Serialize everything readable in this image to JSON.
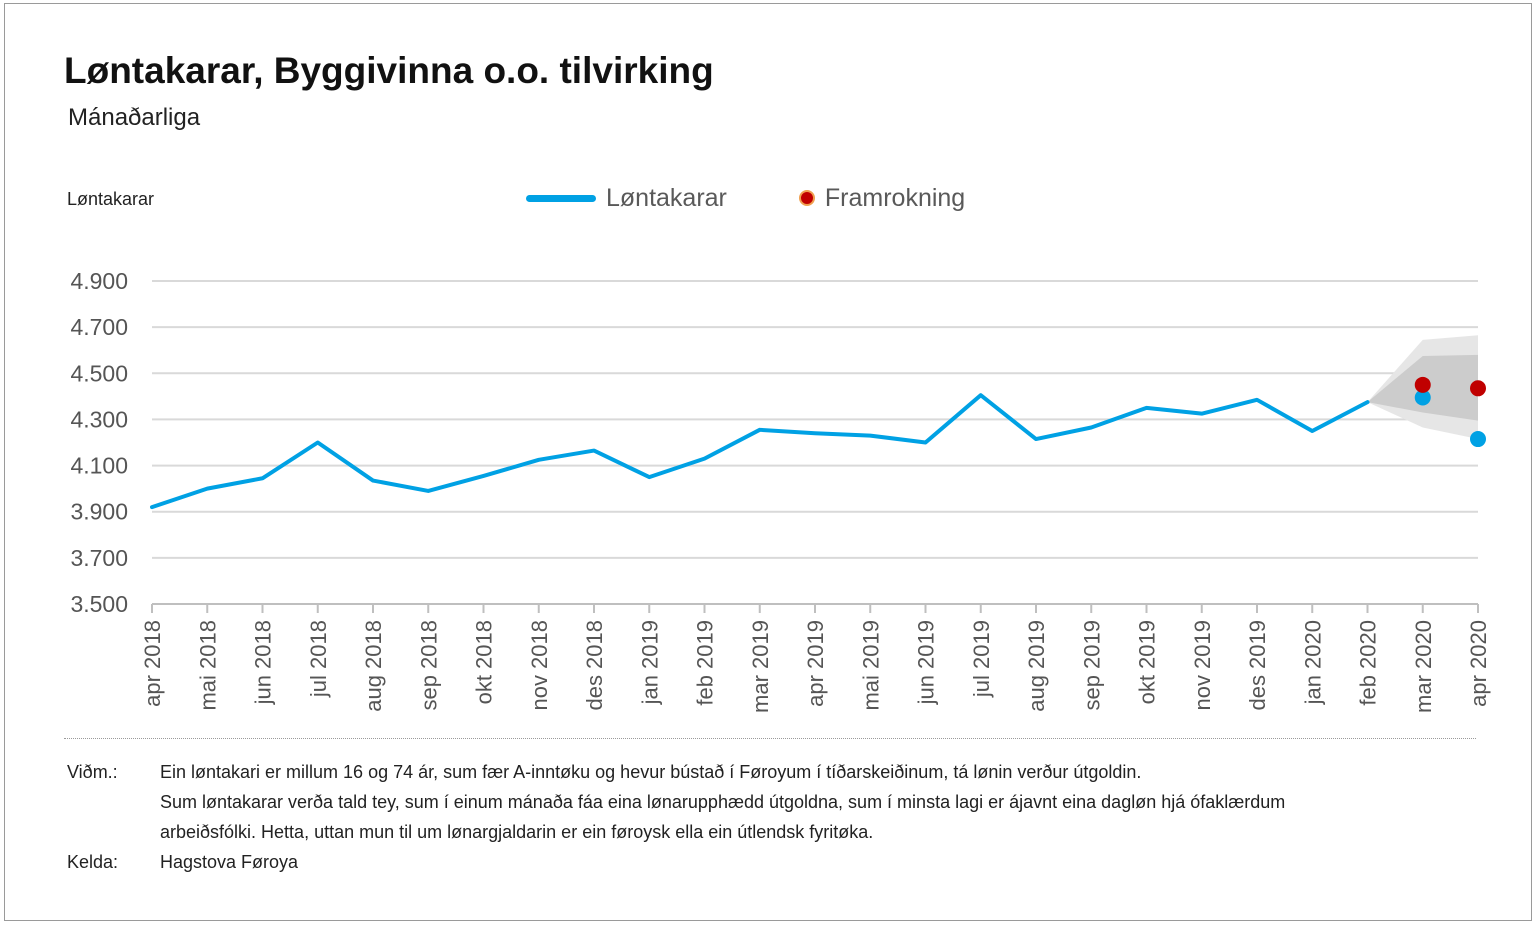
{
  "header": {
    "title": "Løntakarar, Byggivinna o.o. tilvirking",
    "subtitle": "Mánaðarliga"
  },
  "chart_data": {
    "type": "line",
    "title": "Løntakarar, Byggivinna o.o. tilvirking",
    "subtitle": "Mánaðarliga",
    "ylabel": "Løntakarar",
    "ylim": [
      3500,
      4900
    ],
    "yticks": [
      3500,
      3700,
      3900,
      4100,
      4300,
      4500,
      4700,
      4900
    ],
    "ytick_labels": [
      "3.500",
      "3.700",
      "3.900",
      "4.100",
      "4.300",
      "4.500",
      "4.700",
      "4.900"
    ],
    "categories": [
      "apr 2018",
      "mai 2018",
      "jun 2018",
      "jul 2018",
      "aug 2018",
      "sep 2018",
      "okt 2018",
      "nov 2018",
      "des 2018",
      "jan 2019",
      "feb 2019",
      "mar 2019",
      "apr 2019",
      "mai 2019",
      "jun 2019",
      "jul 2019",
      "aug 2019",
      "sep 2019",
      "okt 2019",
      "nov 2019",
      "des 2019",
      "jan 2020",
      "feb 2020",
      "mar 2020",
      "apr 2020"
    ],
    "grid": true,
    "legend_position": "top-center",
    "series": [
      {
        "name": "Løntakarar",
        "color": "#00a1e4",
        "values": [
          3920,
          4000,
          4045,
          4200,
          4035,
          3990,
          4055,
          4125,
          4165,
          4050,
          4130,
          4255,
          4240,
          4230,
          4200,
          4405,
          4215,
          4265,
          4350,
          4325,
          4385,
          4250,
          4375,
          null,
          null
        ]
      },
      {
        "name": "Framrokning",
        "color": "#c00000",
        "values": [
          null,
          null,
          null,
          null,
          null,
          null,
          null,
          null,
          null,
          null,
          null,
          null,
          null,
          null,
          null,
          null,
          null,
          null,
          null,
          null,
          null,
          null,
          null,
          4450,
          4435
        ]
      }
    ],
    "extra_points": {
      "color": "#00a1e4",
      "x": [
        "mar 2020",
        "apr 2020"
      ],
      "values": [
        4395,
        4215
      ]
    },
    "forecast_band": {
      "x": [
        "feb 2020",
        "mar 2020",
        "apr 2020"
      ],
      "outer_low": [
        4375,
        4265,
        4215
      ],
      "outer_high": [
        4375,
        4645,
        4665
      ],
      "inner_low": [
        4375,
        4330,
        4295
      ],
      "inner_high": [
        4375,
        4575,
        4580
      ],
      "outer_color": "#e6e6e6",
      "inner_color": "#cccccc"
    }
  },
  "notes": {
    "vidm_label": "Viðm.:",
    "lines": [
      "Ein løntakari er millum 16 og 74 ár, sum fær A-inntøku og hevur bústað í Føroyum í tíðarskeiðinum, tá lønin verður útgoldin.",
      "Sum løntakarar verða tald tey, sum í einum mánaða fáa eina lønarupphædd útgoldna, sum í minsta lagi er ájavnt eina dagløn hjá ófaklærdum",
      "arbeiðsfólki. Hetta, uttan mun til um lønargjaldarin er ein føroysk ella ein útlendsk fyritøka."
    ],
    "source_label": "Kelda:",
    "source": "Hagstova Føroya"
  }
}
